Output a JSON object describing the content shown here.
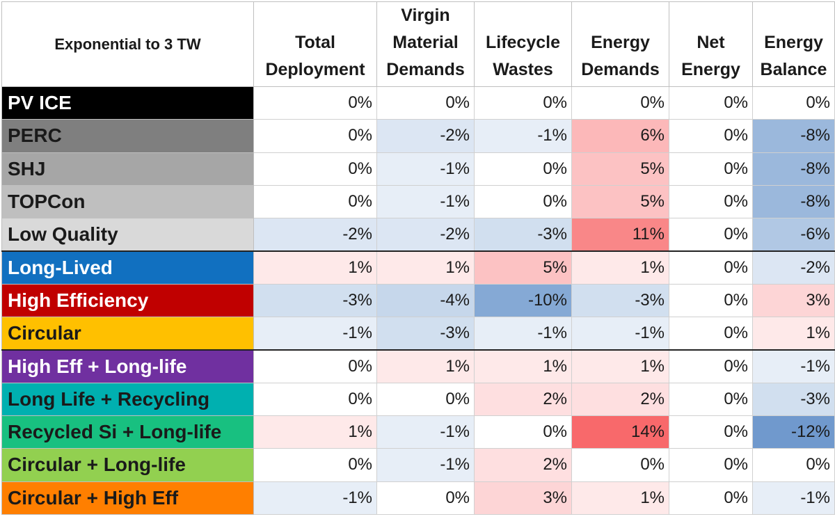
{
  "chart_data": {
    "type": "table",
    "title": "Exponential to 3 TW",
    "columns": [
      "Total Deployment",
      "Virgin Material Demands",
      "Lifecycle Wastes",
      "Energy Demands",
      "Net Energy",
      "Energy Balance"
    ],
    "header_lines": [
      [
        "",
        "Total"
      ],
      [
        "Virgin",
        "Material"
      ],
      [
        "",
        "Lifecycle"
      ],
      [
        "",
        "Energy"
      ],
      [
        "",
        "Net"
      ],
      [
        "",
        "Energy"
      ]
    ],
    "header_lines_b": [
      "Deployment",
      "Demands",
      "Wastes",
      "Demands",
      "Energy",
      "Balance"
    ],
    "rows": [
      {
        "label": "PV ICE",
        "bg": "#000000",
        "fg": "#ffffff",
        "values": [
          0,
          0,
          0,
          0,
          0,
          0
        ]
      },
      {
        "label": "PERC",
        "bg": "#7f7f7f",
        "fg": "#1a1a1a",
        "values": [
          0,
          -2,
          -1,
          6,
          0,
          -8
        ]
      },
      {
        "label": "SHJ",
        "bg": "#a6a6a6",
        "fg": "#1a1a1a",
        "values": [
          0,
          -1,
          0,
          5,
          0,
          -8
        ]
      },
      {
        "label": "TOPCon",
        "bg": "#bfbfbf",
        "fg": "#1a1a1a",
        "values": [
          0,
          -1,
          0,
          5,
          0,
          -8
        ]
      },
      {
        "label": "Low Quality",
        "bg": "#d9d9d9",
        "fg": "#1a1a1a",
        "values": [
          -2,
          -2,
          -3,
          11,
          0,
          -6
        ]
      },
      {
        "label": "Long-Lived",
        "bg": "#1170c0",
        "fg": "#ffffff",
        "values": [
          1,
          1,
          5,
          1,
          0,
          -2
        ]
      },
      {
        "label": "High Efficiency",
        "bg": "#c00000",
        "fg": "#ffffff",
        "values": [
          -3,
          -4,
          -10,
          -3,
          0,
          3
        ]
      },
      {
        "label": "Circular",
        "bg": "#ffc000",
        "fg": "#1a1a1a",
        "values": [
          -1,
          -3,
          -1,
          -1,
          0,
          1
        ]
      },
      {
        "label": "High Eff + Long-life",
        "bg": "#7030a0",
        "fg": "#ffffff",
        "values": [
          0,
          1,
          1,
          1,
          0,
          -1
        ]
      },
      {
        "label": "Long Life + Recycling",
        "bg": "#00b0b0",
        "fg": "#1a1a1a",
        "values": [
          0,
          0,
          2,
          2,
          0,
          -3
        ]
      },
      {
        "label": "Recycled Si + Long-life",
        "bg": "#18c080",
        "fg": "#1a1a1a",
        "values": [
          1,
          -1,
          0,
          14,
          0,
          -12
        ]
      },
      {
        "label": "Circular + Long-life",
        "bg": "#92d050",
        "fg": "#1a1a1a",
        "values": [
          0,
          -1,
          2,
          0,
          0,
          0
        ]
      },
      {
        "label": "Circular + High Eff",
        "bg": "#ff7f00",
        "fg": "#1a1a1a",
        "values": [
          -1,
          0,
          3,
          1,
          0,
          -1
        ]
      }
    ],
    "cell_colors": {
      "positive_max": "#f8696b",
      "negative_max": "#5a8ac6",
      "neutral": "#ffffff"
    }
  }
}
